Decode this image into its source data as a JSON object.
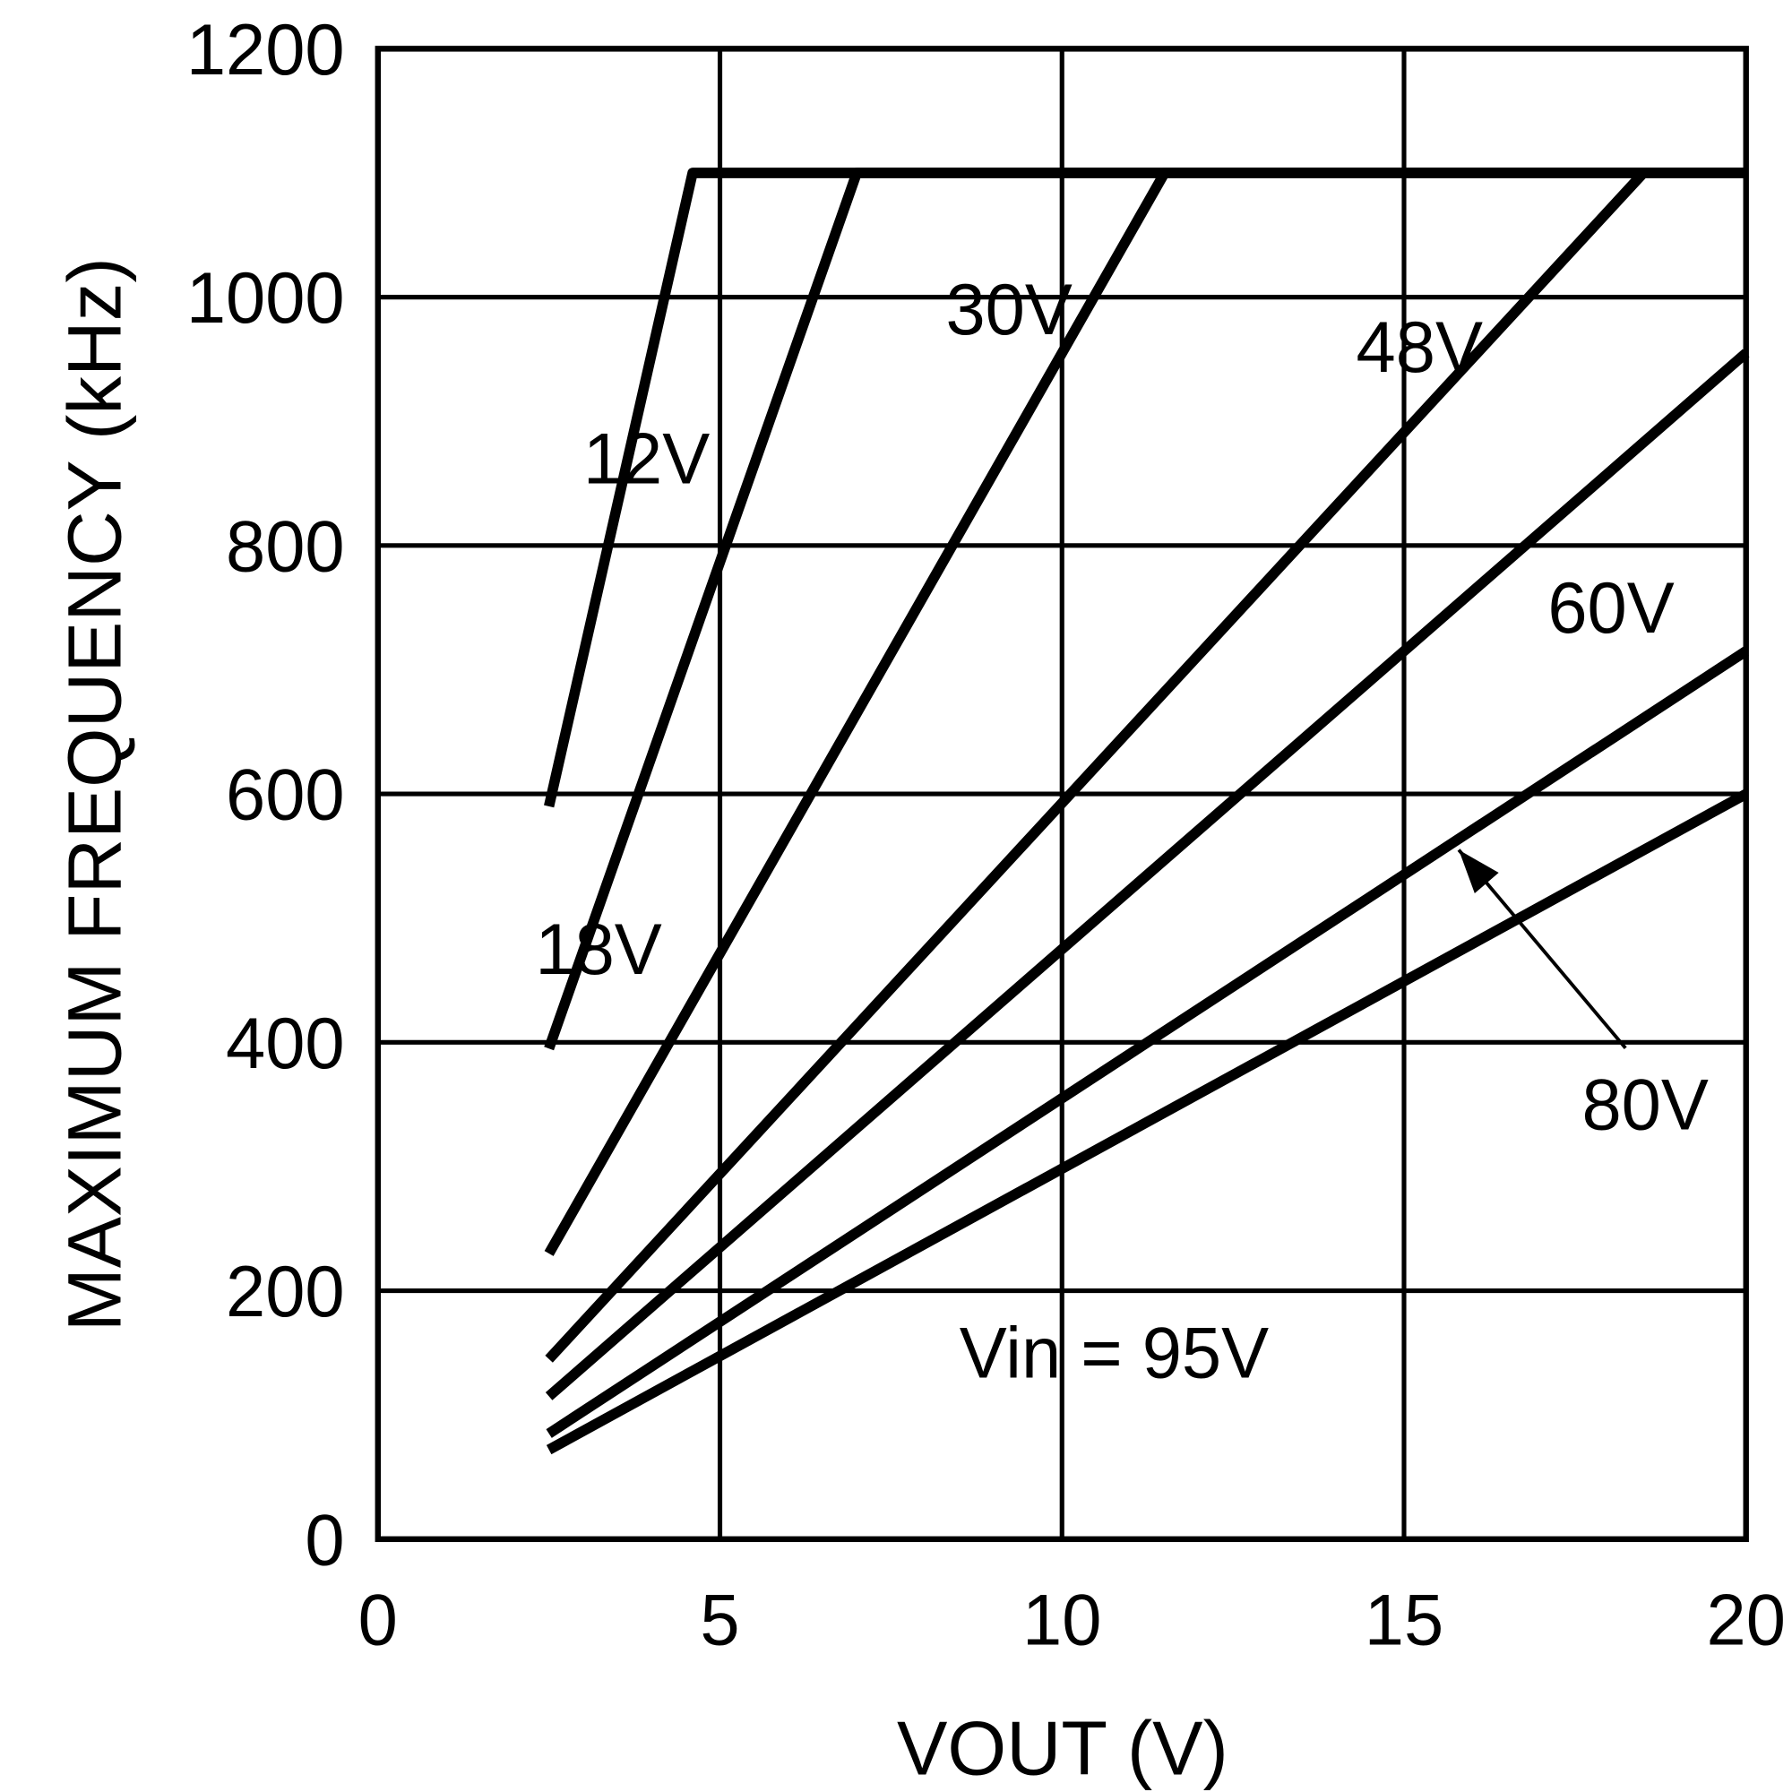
{
  "chart_data": {
    "type": "line",
    "title": "",
    "xlabel": "VOUT (V)",
    "ylabel": "MAXIMUM FREQUENCY (kHz)",
    "xlim": [
      0,
      20
    ],
    "ylim": [
      0,
      1200
    ],
    "xticks": [
      "0",
      "5",
      "10",
      "15",
      "20"
    ],
    "yticks": [
      "0",
      "200",
      "400",
      "600",
      "800",
      "1000",
      "1200"
    ],
    "grid": true,
    "series": [
      {
        "name": "12V",
        "x": [
          2.5,
          4.6,
          20
        ],
        "y": [
          590,
          1100,
          1100
        ]
      },
      {
        "name": "18V",
        "x": [
          2.5,
          7,
          20
        ],
        "y": [
          395,
          1100,
          1100
        ]
      },
      {
        "name": "30V",
        "x": [
          2.5,
          11.5,
          20
        ],
        "y": [
          230,
          1100,
          1100
        ]
      },
      {
        "name": "48V",
        "x": [
          2.5,
          18.5,
          20
        ],
        "y": [
          145,
          1100,
          1100
        ]
      },
      {
        "name": "60V",
        "x": [
          2.5,
          20
        ],
        "y": [
          115,
          955
        ]
      },
      {
        "name": "80V",
        "x": [
          2.5,
          20
        ],
        "y": [
          85,
          715
        ]
      },
      {
        "name": "Vin = 95V",
        "x": [
          2.5,
          20
        ],
        "y": [
          72,
          600
        ]
      }
    ],
    "annotations": [
      {
        "text": "12V",
        "x": 3.0,
        "y": 850
      },
      {
        "text": "18V",
        "x": 2.3,
        "y": 455
      },
      {
        "text": "30V",
        "x": 8.3,
        "y": 970
      },
      {
        "text": "48V",
        "x": 14.3,
        "y": 940
      },
      {
        "text": "60V",
        "x": 17.1,
        "y": 730
      },
      {
        "text": "80V",
        "x": 17.6,
        "y": 330,
        "arrow_to": [
          15.8,
          555
        ]
      },
      {
        "text": "Vin = 95V",
        "x": 8.5,
        "y": 130
      }
    ],
    "color": "#000000"
  }
}
